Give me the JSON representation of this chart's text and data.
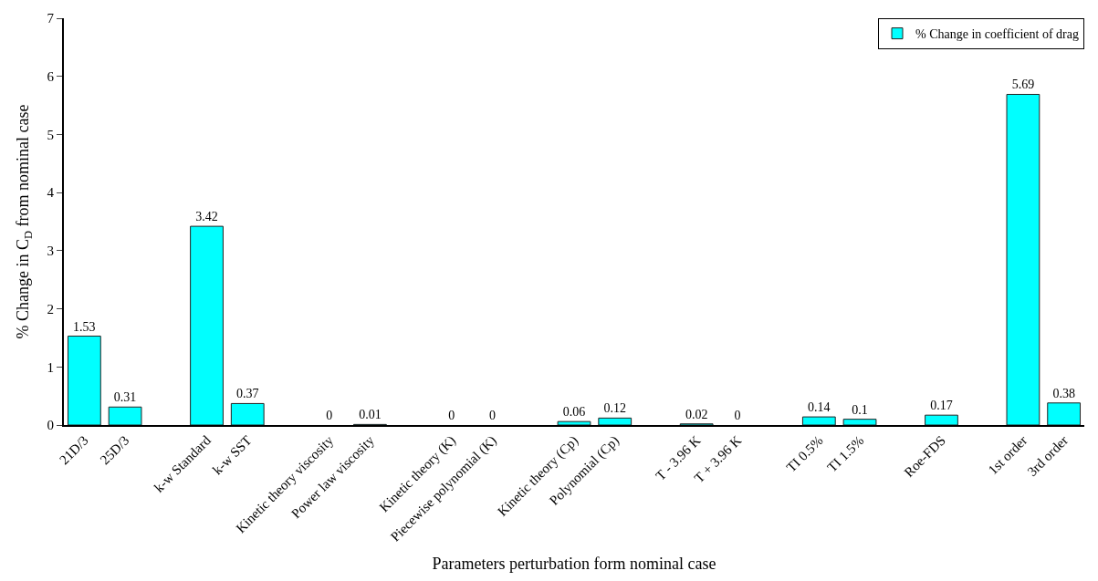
{
  "chart_data": {
    "type": "bar",
    "xlabel": "Parameters perturbation form nominal case",
    "ylabel": "% Change in C$_{D}$ from nominal case",
    "categories": [
      "21D/3",
      "25D/3",
      null,
      "k-w Standard",
      "k-w SST",
      null,
      "Kinetic theory viscosity",
      "Power law viscosity",
      null,
      "Kinetic theory (K)",
      "Piecewise polynomial (K)",
      null,
      "Kinetic theory (Cp)",
      "Polynomial (Cp)",
      null,
      "T - 3.96 K",
      "T + 3.96 K",
      null,
      "TI 0.5%",
      "TI 1.5%",
      null,
      "Roe-FDS",
      null,
      "1st order",
      "3rd order"
    ],
    "series": [
      {
        "name": "% Change in coefficient of drag",
        "color": "#00ffff",
        "values": [
          1.53,
          0.31,
          null,
          3.42,
          0.37,
          null,
          0,
          0.01,
          null,
          0,
          0,
          null,
          0.06,
          0.12,
          null,
          0.02,
          0,
          null,
          0.14,
          0.1,
          null,
          0.17,
          null,
          5.69,
          0.38
        ]
      }
    ],
    "ylim": [
      0,
      7
    ],
    "yticks": [
      0,
      1,
      2,
      3,
      4,
      5,
      6,
      7
    ],
    "legend": "top right",
    "data_labels": true
  }
}
